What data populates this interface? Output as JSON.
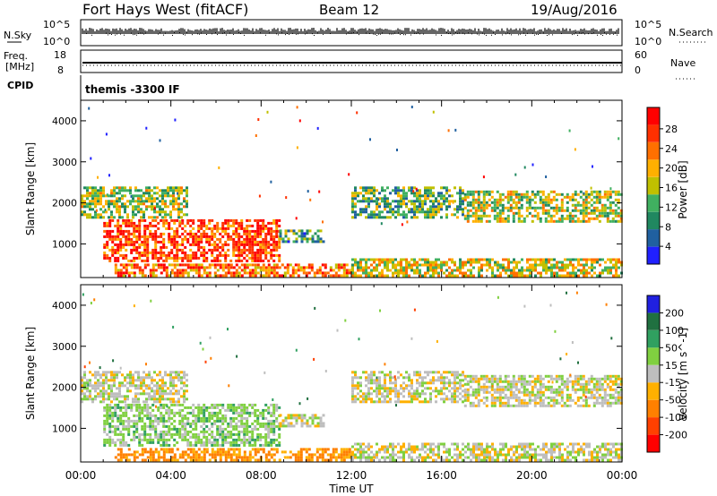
{
  "header": {
    "station": "Fort Hays West (fitACF)",
    "beam": "Beam 12",
    "date": "19/Aug/2016"
  },
  "strips": {
    "nsky_label": "N.Sky",
    "nsky_ticks": [
      "10^5",
      "10^0"
    ],
    "nsearch_label": "N.Search",
    "nsearch_ticks": [
      "10^5",
      "10^0"
    ],
    "freq_label_line1": "Freq.",
    "freq_label_line2": "[MHz]",
    "freq_ticks": [
      "18",
      "8"
    ],
    "nave_label": "Nave",
    "nave_ticks": [
      "60",
      "0"
    ],
    "cpid_label": "CPID",
    "cpid_text": "themis -3300 IF"
  },
  "colors": {
    "power": [
      "#2020ff",
      "#2060a0",
      "#208860",
      "#40b060",
      "#c0c000",
      "#ffb000",
      "#ff7000",
      "#ff3000",
      "#ff0000"
    ],
    "velocity": [
      "#2020e0",
      "#207040",
      "#30a060",
      "#80d040",
      "#bebebe",
      "#ffb000",
      "#ff8000",
      "#ff4000",
      "#ff0000"
    ]
  },
  "chart_data": [
    {
      "type": "heatmap",
      "panel": "power",
      "ylabel": "Slant Range [km]",
      "y_ticks": [
        "1000",
        "2000",
        "3000",
        "4000"
      ],
      "ylim": [
        180,
        4500
      ],
      "x_ticks": [
        "00:00",
        "04:00",
        "08:00",
        "12:00",
        "16:00",
        "20:00",
        "00:00"
      ],
      "xlim_hours": [
        0,
        24
      ],
      "colorbar_label": "Power [dB]",
      "colorbar_ticks": [
        "4",
        "8",
        "12",
        "16",
        "20",
        "24",
        "28"
      ],
      "colorbar_range": [
        0,
        30
      ],
      "regions": [
        {
          "t": [
            0.0,
            4.7
          ],
          "r": [
            1650,
            2400
          ],
          "value": 14
        },
        {
          "t": [
            1.0,
            8.8
          ],
          "r": [
            560,
            1600
          ],
          "value": 25
        },
        {
          "t": [
            8.8,
            10.8
          ],
          "r": [
            1050,
            1350
          ],
          "value": 10
        },
        {
          "t": [
            1.5,
            12.0
          ],
          "r": [
            200,
            520
          ],
          "value": 22
        },
        {
          "t": [
            12.0,
            17.0
          ],
          "r": [
            1650,
            2400
          ],
          "value": 11
        },
        {
          "t": [
            17.0,
            24.0
          ],
          "r": [
            1550,
            2300
          ],
          "value": 15
        },
        {
          "t": [
            12.0,
            24.0
          ],
          "r": [
            200,
            650
          ],
          "value": 16
        }
      ]
    },
    {
      "type": "heatmap",
      "panel": "velocity",
      "ylabel": "Slant Range [km]",
      "y_ticks": [
        "1000",
        "2000",
        "3000",
        "4000"
      ],
      "ylim": [
        180,
        4500
      ],
      "x_ticks": [
        "00:00",
        "04:00",
        "08:00",
        "12:00",
        "16:00",
        "20:00",
        "00:00"
      ],
      "xlim_hours": [
        0,
        24
      ],
      "xlabel": "Time UT",
      "colorbar_label": "Velocity [m s^-1]",
      "colorbar_ticks": [
        "200",
        "100",
        "50",
        "15",
        "-15",
        "-50",
        "-100",
        "-200"
      ],
      "regions": [
        {
          "t": [
            0.0,
            4.7
          ],
          "r": [
            1650,
            2400
          ],
          "value": 0
        },
        {
          "t": [
            1.0,
            8.8
          ],
          "r": [
            560,
            1600
          ],
          "value": 30
        },
        {
          "t": [
            8.8,
            10.8
          ],
          "r": [
            1050,
            1350
          ],
          "value": 0
        },
        {
          "t": [
            1.5,
            12.0
          ],
          "r": [
            200,
            520
          ],
          "value": -60
        },
        {
          "t": [
            12.0,
            17.0
          ],
          "r": [
            1650,
            2400
          ],
          "value": 0
        },
        {
          "t": [
            17.0,
            24.0
          ],
          "r": [
            1550,
            2300
          ],
          "value": 0
        },
        {
          "t": [
            12.0,
            24.0
          ],
          "r": [
            200,
            650
          ],
          "value": 0
        }
      ]
    }
  ]
}
